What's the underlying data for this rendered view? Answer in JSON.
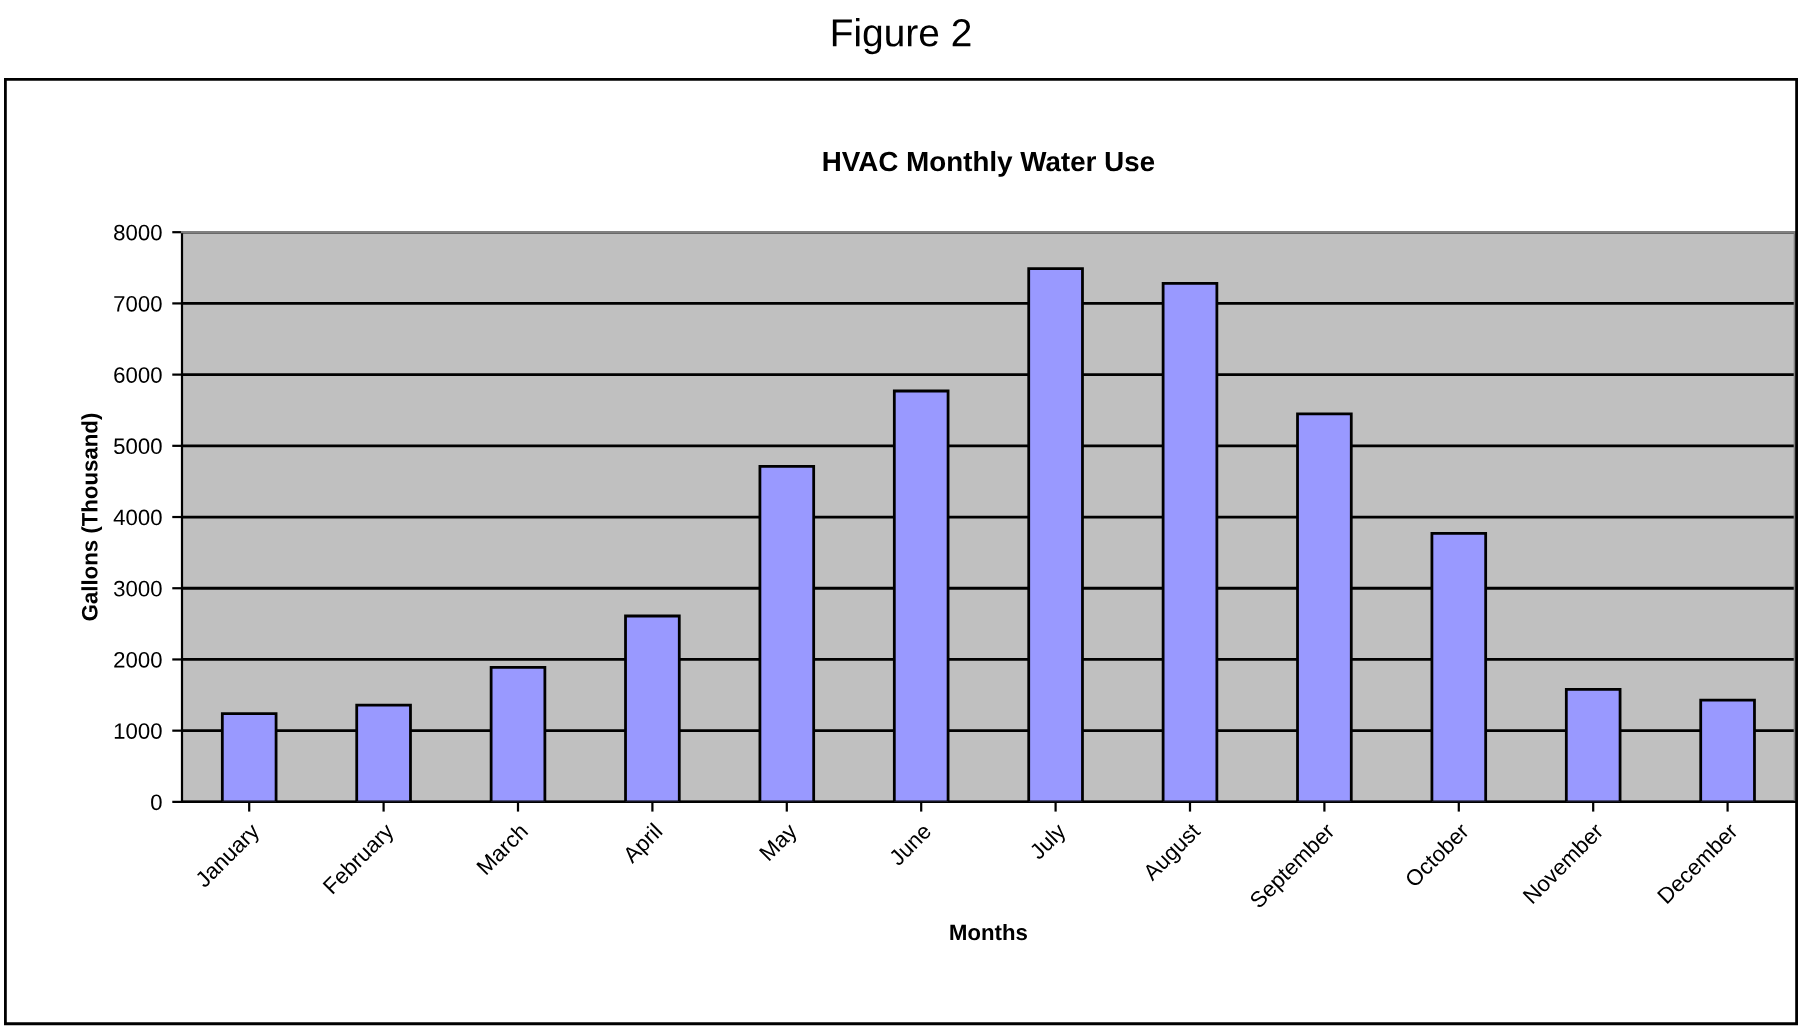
{
  "chart_data": {
    "type": "bar",
    "title": "HVAC Monthly Water Use",
    "xlabel": "Months",
    "ylabel": "Gallons (Thousand)",
    "annotations": [
      "Figure 2"
    ],
    "categories": [
      "January",
      "February",
      "March",
      "April",
      "May",
      "June",
      "July",
      "August",
      "September",
      "October",
      "November",
      "December"
    ],
    "values": [
      1240,
      1360,
      1890,
      2610,
      4710,
      5770,
      7490,
      7280,
      5450,
      3770,
      1580,
      1430
    ],
    "color": "#9999ff",
    "ylim": [
      0,
      8000
    ],
    "yticks": [
      0,
      1000,
      2000,
      3000,
      4000,
      5000,
      6000,
      7000,
      8000
    ],
    "grid": "y"
  }
}
